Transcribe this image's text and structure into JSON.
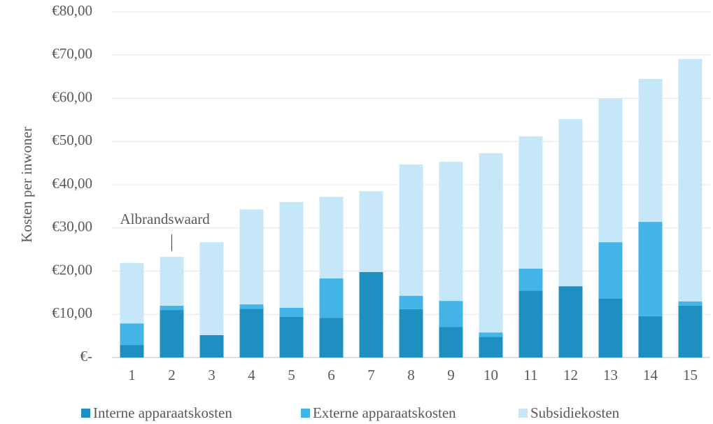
{
  "chart_data": {
    "type": "stacked_bar",
    "y_label": "Kosten per inwoner",
    "categories": [
      "1",
      "2",
      "3",
      "4",
      "5",
      "6",
      "7",
      "8",
      "9",
      "10",
      "11",
      "12",
      "13",
      "14",
      "15"
    ],
    "series": [
      {
        "name": "Interne apparaatskosten",
        "color": "#1f8fc1",
        "values": [
          2.9,
          11.0,
          5.2,
          11.3,
          9.4,
          9.2,
          19.8,
          11.2,
          7.1,
          4.8,
          15.5,
          16.5,
          13.6,
          9.6,
          12.0
        ]
      },
      {
        "name": "Externe apparaatskosten",
        "color": "#42b4e6",
        "values": [
          5.0,
          1.0,
          0,
          1.0,
          2.1,
          9.1,
          0,
          3.1,
          6.0,
          1.0,
          5.1,
          0,
          13.1,
          21.8,
          1.0
        ]
      },
      {
        "name": "Subsidiekosten",
        "color": "#c6e7f8",
        "values": [
          14.0,
          11.3,
          21.5,
          22.0,
          24.5,
          18.9,
          18.7,
          30.4,
          32.2,
          41.5,
          30.6,
          38.7,
          33.2,
          33.1,
          56.1
        ]
      }
    ],
    "ylim": [
      0,
      80
    ],
    "yticks": [
      {
        "value": 0,
        "label": "€-"
      },
      {
        "value": 10,
        "label": "€10,00"
      },
      {
        "value": 20,
        "label": "€20,00"
      },
      {
        "value": 30,
        "label": "€30,00"
      },
      {
        "value": 40,
        "label": "€40,00"
      },
      {
        "value": 50,
        "label": "€50,00"
      },
      {
        "value": 60,
        "label": "€60,00"
      },
      {
        "value": 70,
        "label": "€70,00"
      },
      {
        "value": 80,
        "label": "€80,00"
      }
    ],
    "grid": true,
    "legend": "bottom",
    "annotation": {
      "text": "Albrandswaard",
      "x": "2"
    }
  }
}
